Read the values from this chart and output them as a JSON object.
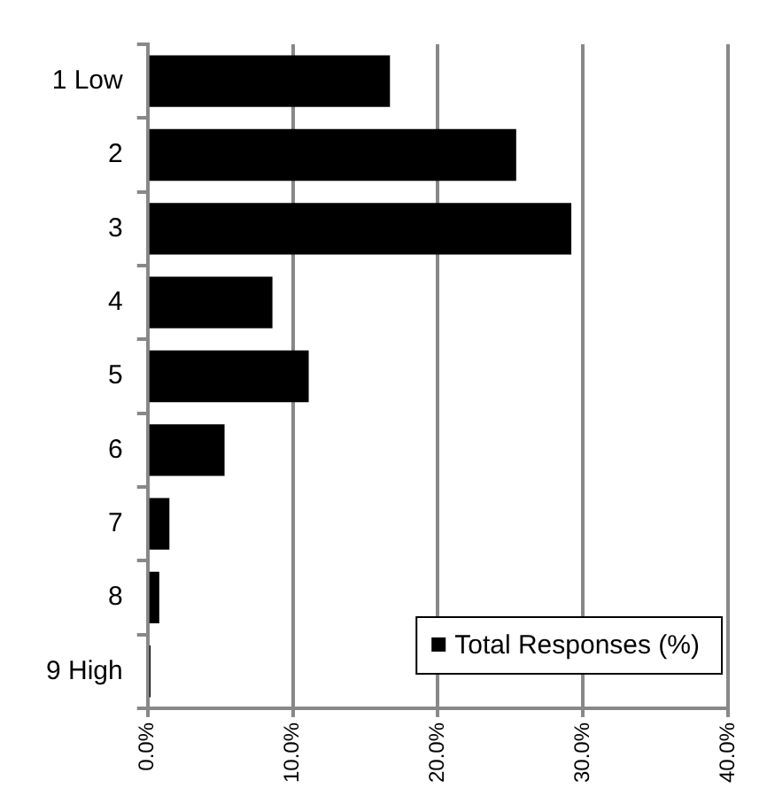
{
  "chart_data": {
    "type": "bar",
    "orientation": "horizontal",
    "categories": [
      "1 Low",
      "2",
      "3",
      "4",
      "5",
      "6",
      "7",
      "8",
      "9 High"
    ],
    "series": [
      {
        "name": "Total Responses (%)",
        "color": "#000000",
        "values": [
          16.7,
          25.4,
          29.2,
          8.6,
          11.1,
          5.3,
          1.5,
          0.8,
          0.2
        ]
      }
    ],
    "xlim": [
      0,
      40
    ],
    "xticks": [
      {
        "value": 0,
        "label": "0.0%"
      },
      {
        "value": 10,
        "label": "10.0%"
      },
      {
        "value": 20,
        "label": "20.0%"
      },
      {
        "value": 30,
        "label": "30.0%"
      },
      {
        "value": 40,
        "label": "40.0%"
      }
    ],
    "grid": "x",
    "legend": "bottom right"
  }
}
